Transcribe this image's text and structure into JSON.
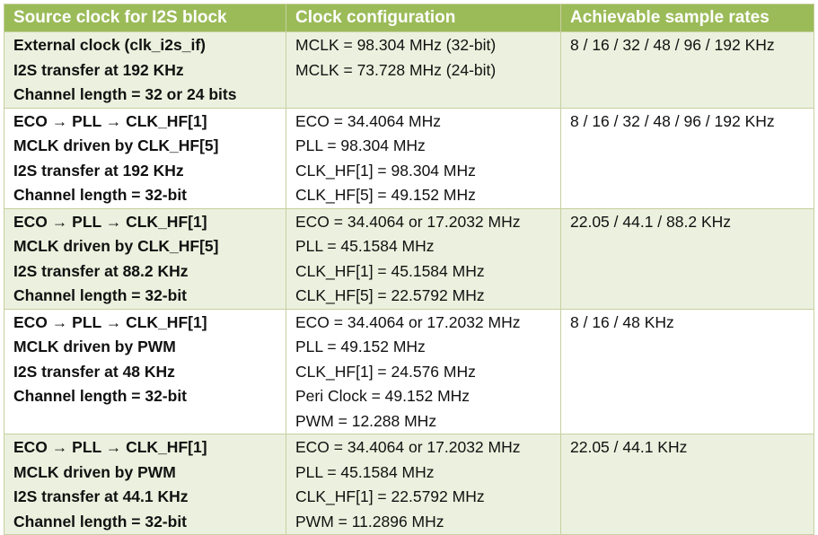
{
  "headers": [
    "Source clock for I2S block",
    "Clock configuration",
    "Achievable sample rates"
  ],
  "rows": [
    {
      "shaded": true,
      "source": [
        "External clock (clk_i2s_if)",
        "I2S transfer at 192 KHz",
        "Channel length = 32 or 24 bits"
      ],
      "config": [
        "MCLK = 98.304 MHz (32-bit)",
        "MCLK = 73.728 MHz (24-bit)"
      ],
      "rates": "8 / 16 / 32 / 48 / 96 / 192 KHz"
    },
    {
      "shaded": false,
      "source": [
        "ECO → PLL → CLK_HF[1]",
        "MCLK driven by CLK_HF[5]",
        "I2S transfer at 192 KHz",
        "Channel length = 32-bit"
      ],
      "config": [
        "ECO = 34.4064 MHz",
        "PLL = 98.304 MHz",
        "CLK_HF[1] = 98.304 MHz",
        "CLK_HF[5] = 49.152 MHz"
      ],
      "rates": "8 / 16 / 32 / 48 / 96 / 192 KHz"
    },
    {
      "shaded": true,
      "source": [
        "ECO → PLL → CLK_HF[1]",
        "MCLK driven by CLK_HF[5]",
        "I2S transfer at 88.2 KHz",
        "Channel length = 32-bit"
      ],
      "config": [
        "ECO = 34.4064 or 17.2032 MHz",
        "PLL = 45.1584 MHz",
        "CLK_HF[1] = 45.1584 MHz",
        "CLK_HF[5] = 22.5792 MHz"
      ],
      "rates": "22.05 / 44.1 / 88.2 KHz"
    },
    {
      "shaded": false,
      "source": [
        "ECO → PLL → CLK_HF[1]",
        "MCLK driven by PWM",
        "I2S transfer at 48 KHz",
        "Channel length = 32-bit"
      ],
      "config": [
        "ECO = 34.4064 or 17.2032 MHz",
        "PLL = 49.152 MHz",
        "CLK_HF[1] = 24.576 MHz",
        "Peri Clock = 49.152 MHz",
        "PWM = 12.288 MHz"
      ],
      "rates": "8 / 16 / 48 KHz"
    },
    {
      "shaded": true,
      "source": [
        "ECO → PLL → CLK_HF[1]",
        "MCLK driven by PWM",
        "I2S transfer at 44.1 KHz",
        "Channel length = 32-bit"
      ],
      "config": [
        "ECO = 34.4064 or 17.2032 MHz",
        "PLL = 45.1584 MHz",
        "CLK_HF[1] = 22.5792 MHz",
        "PWM = 11.2896 MHz"
      ],
      "rates": "22.05 / 44.1 KHz"
    }
  ]
}
